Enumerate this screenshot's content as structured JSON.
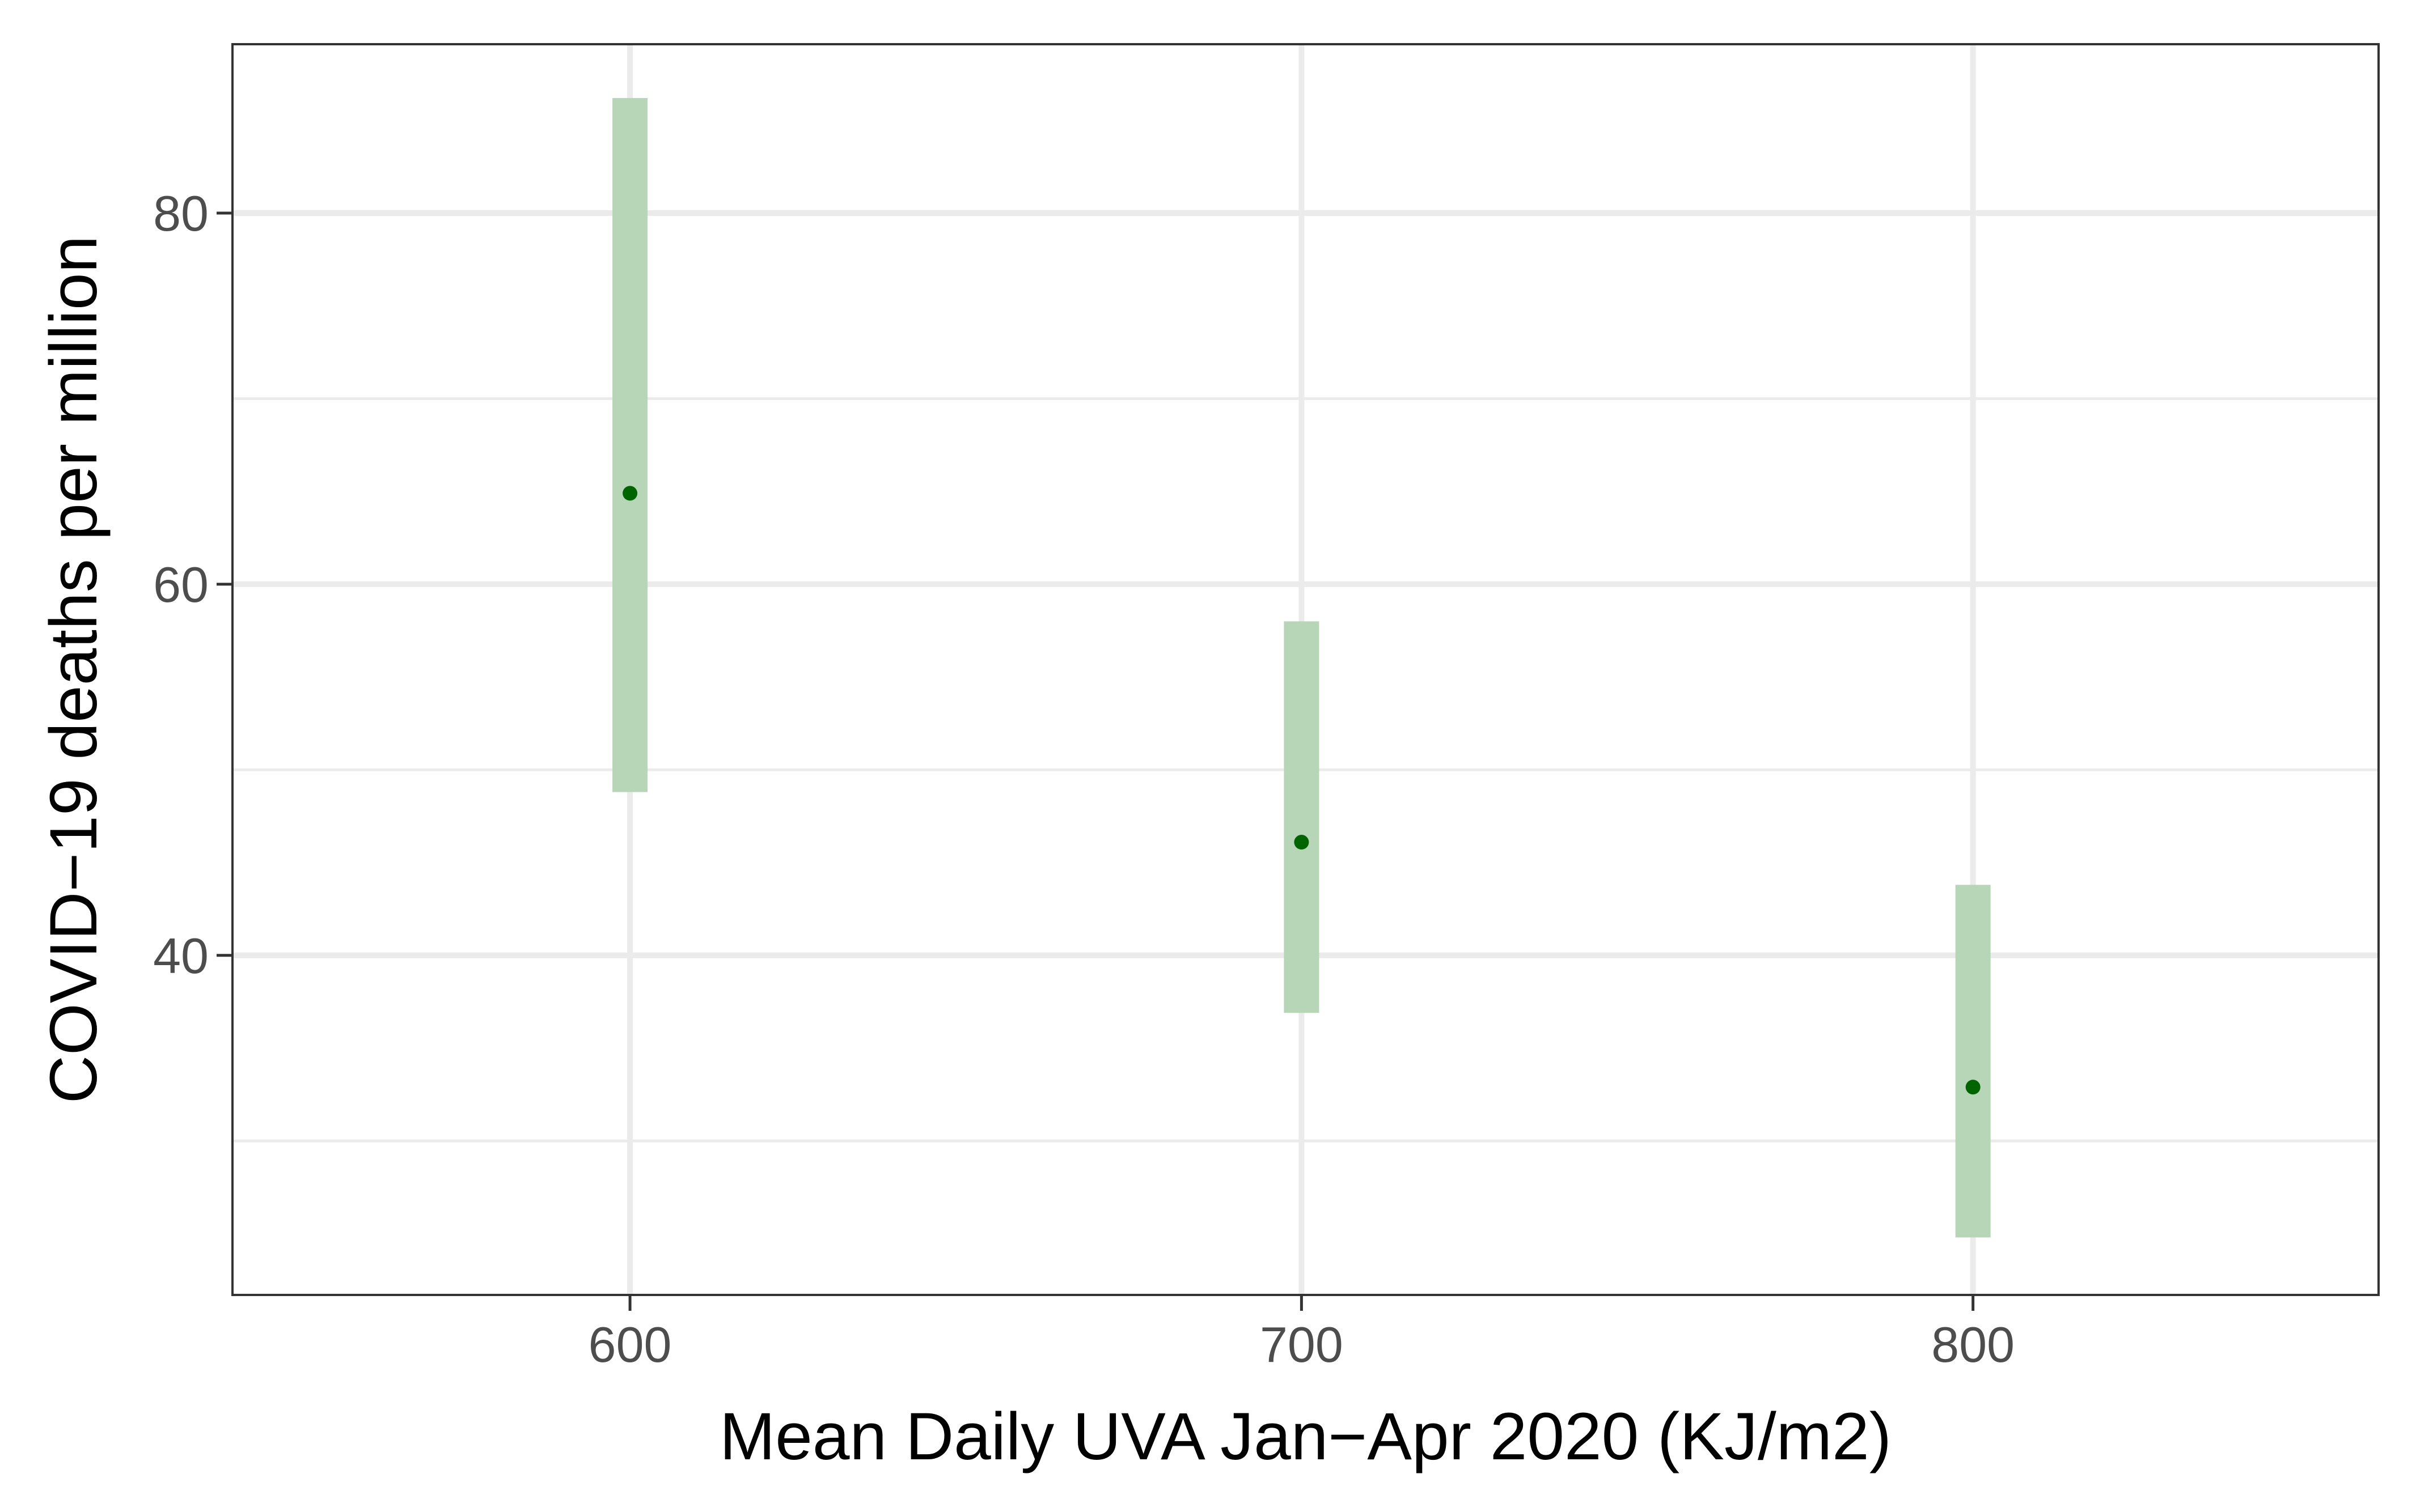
{
  "chart_data": {
    "type": "scatter",
    "title": "",
    "xlabel": "Mean Daily UVA Jan−Apr 2020 (KJ/m2)",
    "ylabel": "COVID−19 deaths per million",
    "xlim": [
      540.8,
      860.4
    ],
    "ylim": [
      21.7,
      89.1
    ],
    "x_ticks": [
      600,
      700,
      800
    ],
    "x_tick_labels": [
      "600",
      "700",
      "800"
    ],
    "y_ticks": [
      40,
      60,
      80
    ],
    "y_tick_labels": [
      "40",
      "60",
      "80"
    ],
    "y_minor_ticks": [
      30,
      50,
      70
    ],
    "grid": true,
    "legend": "none",
    "series": [
      {
        "x": [
          600,
          700,
          800
        ],
        "y": [
          64.9,
          46.1,
          32.9
        ],
        "lower": [
          48.8,
          36.9,
          24.8
        ],
        "upper": [
          86.2,
          58.0,
          43.8
        ]
      }
    ],
    "point_color": "#006400",
    "interval_color": "#b7d6b7"
  }
}
